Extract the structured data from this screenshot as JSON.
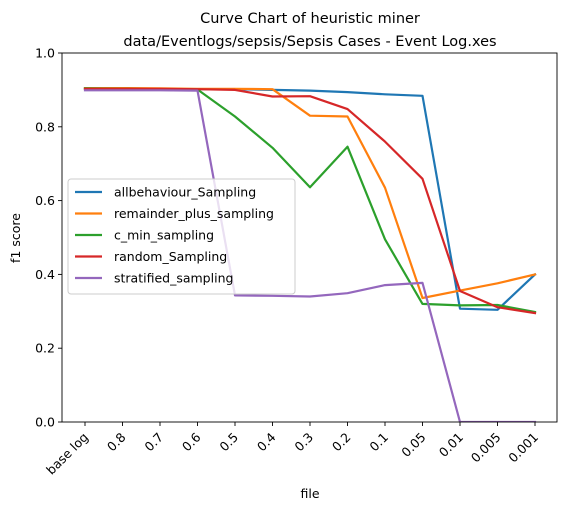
{
  "chart_data": {
    "type": "line",
    "title": "Curve Chart of heuristic miner",
    "subtitle": "data/Eventlogs/sepsis/Sepsis Cases - Event Log.xes",
    "xlabel": "file",
    "ylabel": "f1 score",
    "ylim": [
      0.0,
      1.0
    ],
    "yticks": [
      "0.0",
      "0.2",
      "0.4",
      "0.6",
      "0.8",
      "1.0"
    ],
    "categories": [
      "base log",
      "0.8",
      "0.7",
      "0.6",
      "0.5",
      "0.4",
      "0.3",
      "0.2",
      "0.1",
      "0.05",
      "0.01",
      "0.005",
      "0.001"
    ],
    "grid": false,
    "legend_position": "center-left",
    "series": [
      {
        "name": "allbehaviour_Sampling",
        "color": "#1f77b4",
        "values": [
          0.904,
          0.904,
          0.903,
          0.902,
          0.902,
          0.9,
          0.898,
          0.894,
          0.888,
          0.884,
          0.307,
          0.304,
          0.4
        ]
      },
      {
        "name": "remainder_plus_sampling",
        "color": "#ff7f0e",
        "values": [
          0.905,
          0.905,
          0.904,
          0.903,
          0.903,
          0.902,
          0.83,
          0.828,
          0.635,
          0.336,
          0.356,
          0.376,
          0.4
        ]
      },
      {
        "name": "c_min_sampling",
        "color": "#2ca02c",
        "values": [
          0.904,
          0.903,
          0.902,
          0.901,
          0.828,
          0.743,
          0.636,
          0.746,
          0.495,
          0.32,
          0.316,
          0.317,
          0.298
        ]
      },
      {
        "name": "random_Sampling",
        "color": "#d62728",
        "values": [
          0.903,
          0.903,
          0.903,
          0.902,
          0.9,
          0.882,
          0.883,
          0.848,
          0.76,
          0.659,
          0.355,
          0.311,
          0.295
        ]
      },
      {
        "name": "stratified_sampling",
        "color": "#9467bd",
        "values": [
          0.899,
          0.899,
          0.899,
          0.898,
          0.343,
          0.342,
          0.34,
          0.349,
          0.371,
          0.377,
          0.0,
          0.0,
          0.0
        ]
      }
    ]
  }
}
